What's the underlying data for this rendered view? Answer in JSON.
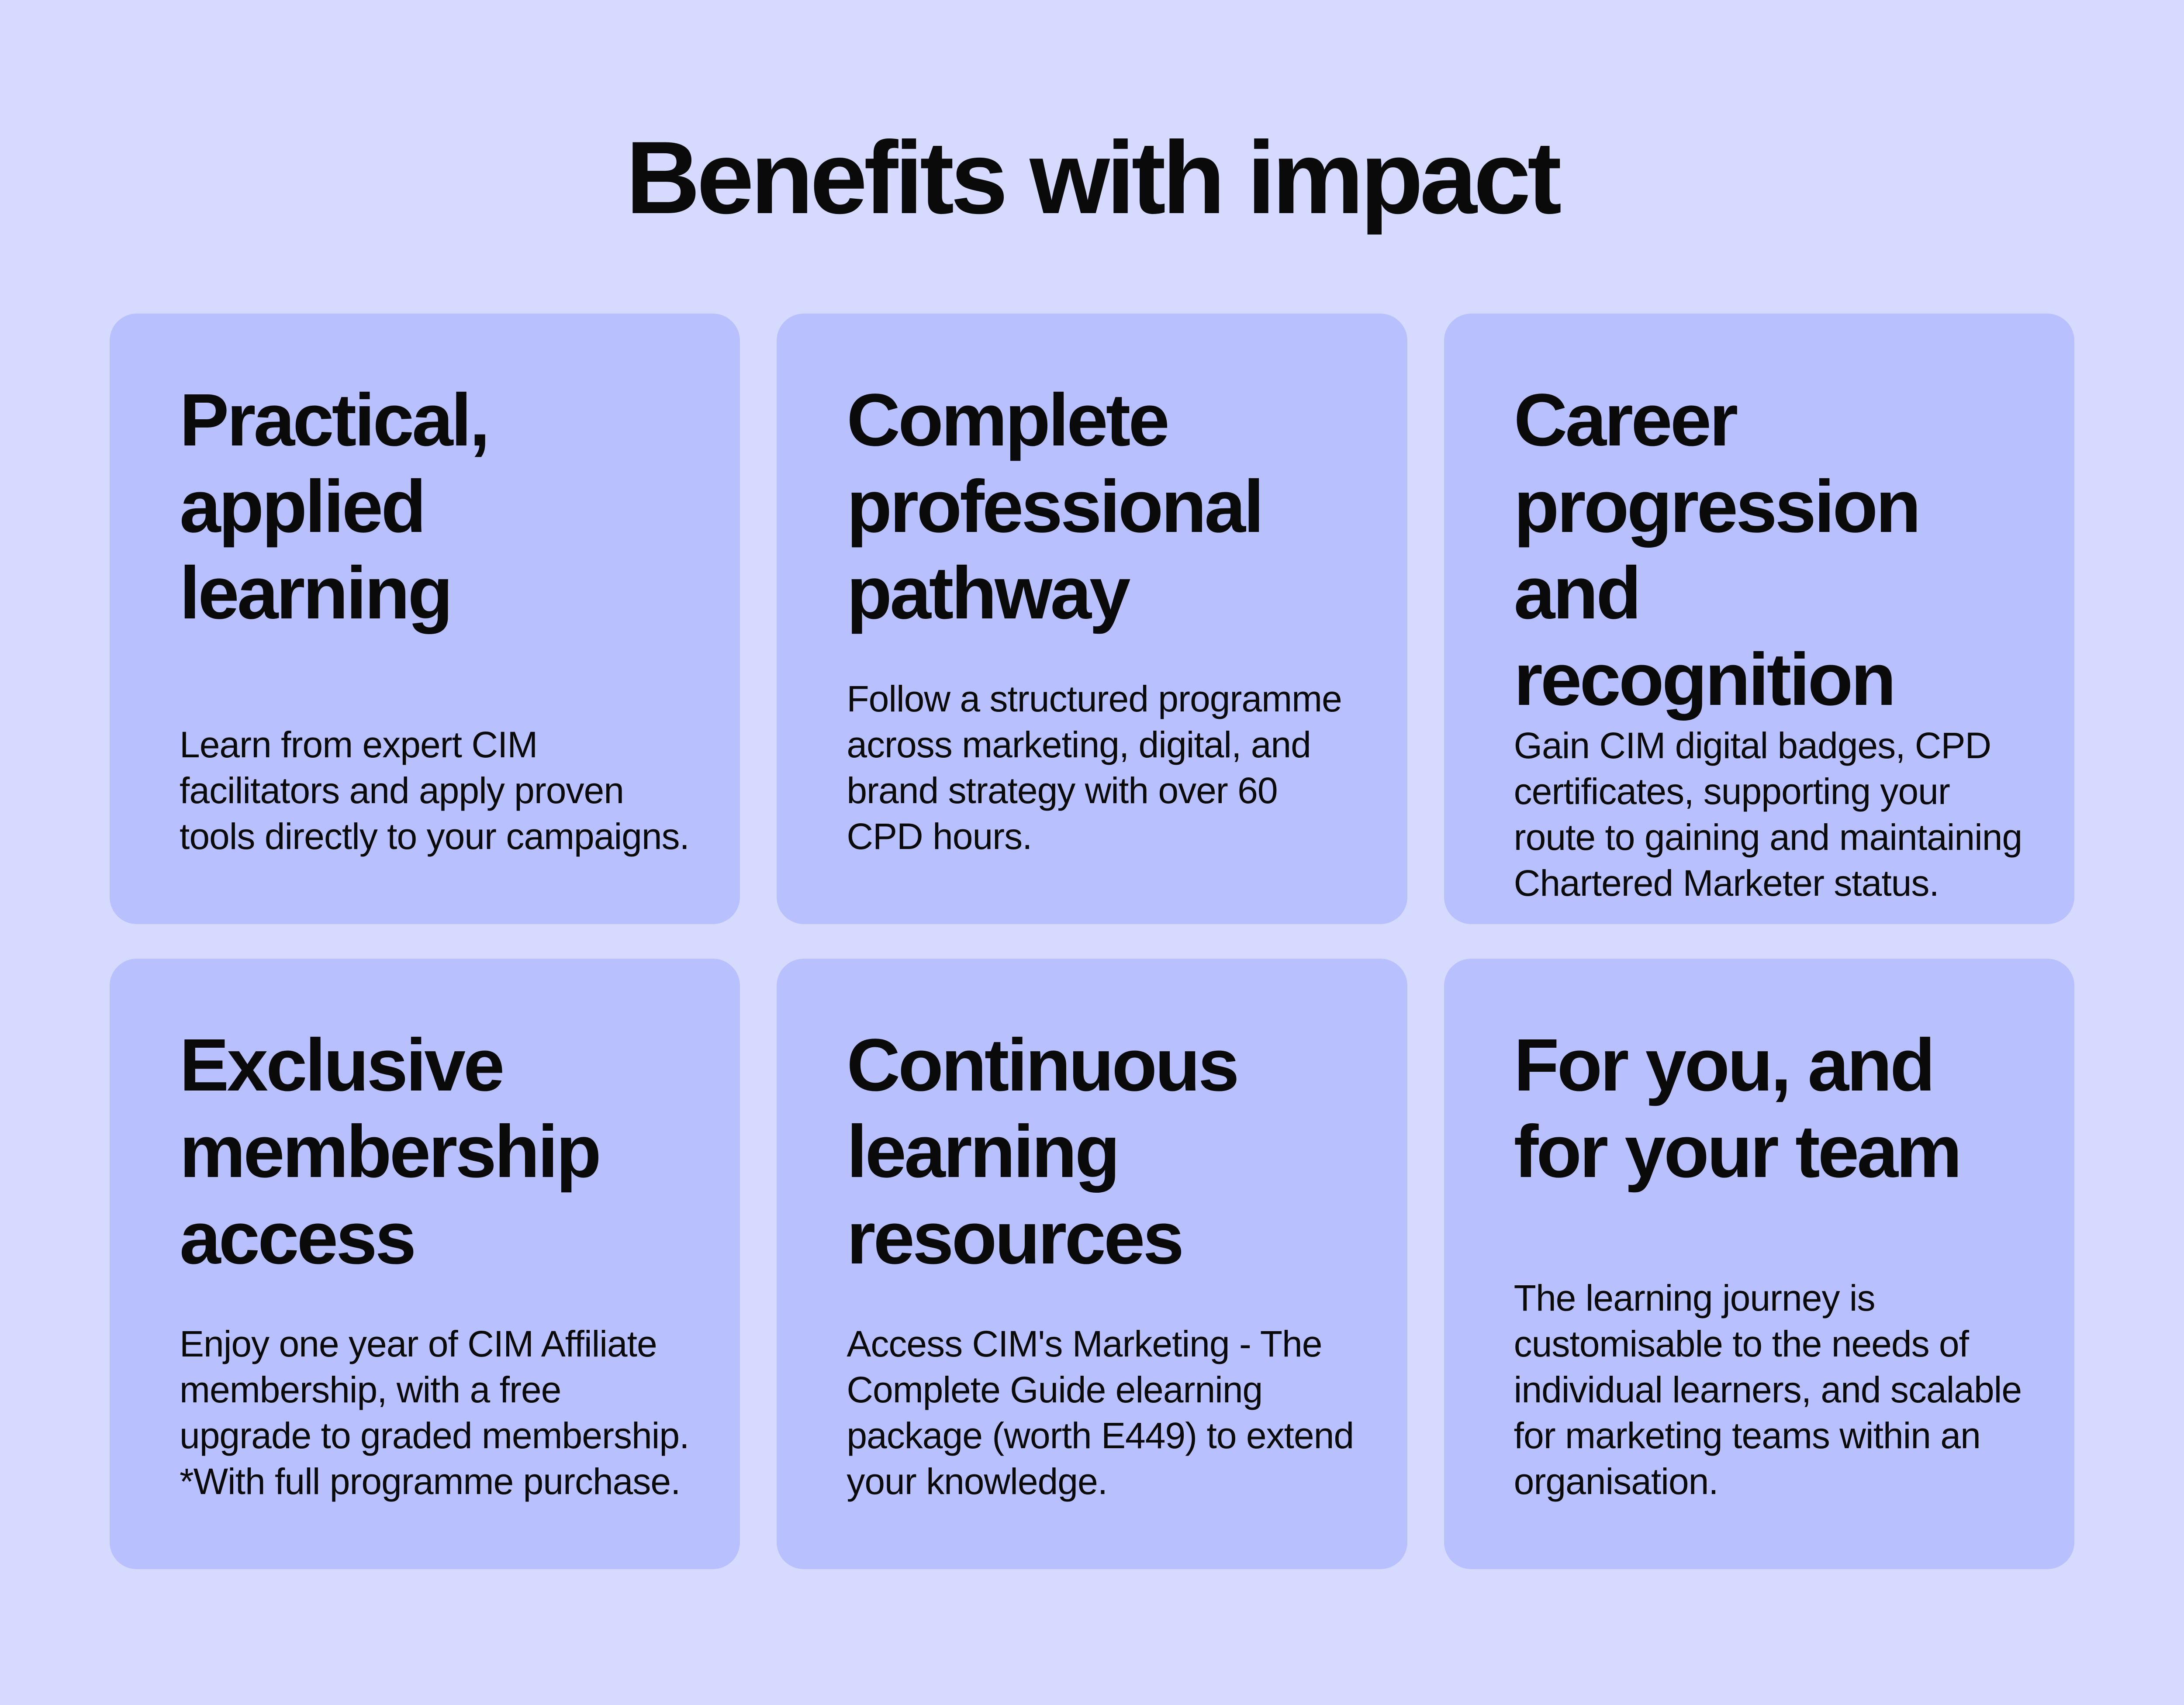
{
  "title": "Benefits with impact",
  "cards": [
    {
      "heading": "Practical, applied learning",
      "body": "Learn from expert CIM facilitators and apply proven tools directly to your campaigns."
    },
    {
      "heading": "Complete professional pathway",
      "body": "Follow a structured programme across marketing, digital, and brand strategy with over 60 CPD hours."
    },
    {
      "heading": "Career progression and recognition",
      "body": "Gain CIM digital badges, CPD certificates, supporting your route to gaining and maintaining Chartered Marketer status."
    },
    {
      "heading": "Exclusive membership access",
      "body": "Enjoy one year of CIM Affiliate membership, with a free upgrade to graded membership. *With full programme purchase."
    },
    {
      "heading": "Continuous learning resources",
      "body": "Access CIM's Marketing - The Complete Guide elearning package (worth E449) to extend your knowledge."
    },
    {
      "heading": "For you, and for your team",
      "body": "The learning journey is customisable to the needs of individual learners, and scalable for marketing teams within an organisation."
    }
  ],
  "colors": {
    "background": "#d5dafe",
    "card": "#b8c1fd",
    "text": "#0a0a0a"
  }
}
